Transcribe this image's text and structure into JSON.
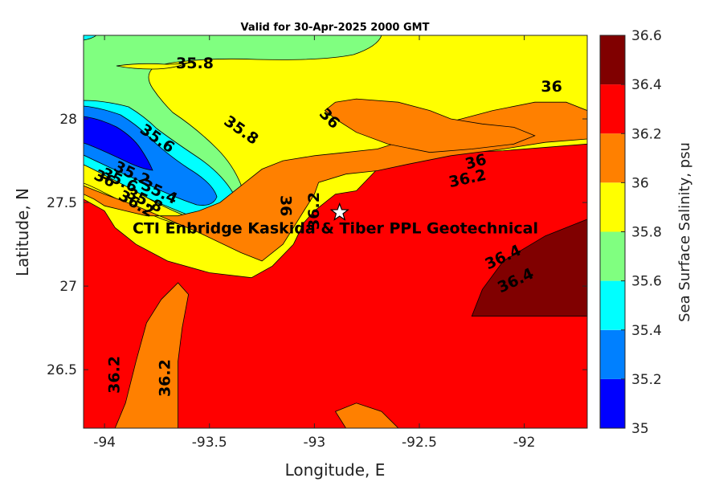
{
  "chart_data": {
    "type": "contourf",
    "title": "Valid for 30-Apr-2025 2000 GMT",
    "xlabel": "Longitude, E",
    "ylabel": "Latitude, N",
    "xlim": [
      -94.1,
      -91.7
    ],
    "ylim": [
      26.15,
      28.5
    ],
    "xticks": [
      {
        "value": -94,
        "label": "-94"
      },
      {
        "value": -93.5,
        "label": "-93.5"
      },
      {
        "value": -93,
        "label": "-93"
      },
      {
        "value": -92.5,
        "label": "-92.5"
      },
      {
        "value": -92,
        "label": "-92"
      }
    ],
    "yticks": [
      {
        "value": 26.5,
        "label": "26.5"
      },
      {
        "value": 27,
        "label": "27"
      },
      {
        "value": 27.5,
        "label": "27.5"
      },
      {
        "value": 28,
        "label": "28"
      }
    ],
    "colorbar": {
      "label": "Sea Surface Salinity, psu",
      "min": 35,
      "max": 36.6,
      "levels": [
        {
          "from": 35.0,
          "to": 35.2,
          "color": "#0000ff"
        },
        {
          "from": 35.2,
          "to": 35.4,
          "color": "#0080ff"
        },
        {
          "from": 35.4,
          "to": 35.6,
          "color": "#00ffff"
        },
        {
          "from": 35.6,
          "to": 35.8,
          "color": "#80ff80"
        },
        {
          "from": 35.8,
          "to": 36.0,
          "color": "#ffff00"
        },
        {
          "from": 36.0,
          "to": 36.2,
          "color": "#ff8000"
        },
        {
          "from": 36.2,
          "to": 36.4,
          "color": "#ff0000"
        },
        {
          "from": 36.4,
          "to": 36.6,
          "color": "#800000"
        }
      ],
      "ticks": [
        {
          "value": 35,
          "label": "35"
        },
        {
          "value": 35.2,
          "label": "35.2"
        },
        {
          "value": 35.4,
          "label": "35.4"
        },
        {
          "value": 35.6,
          "label": "35.6"
        },
        {
          "value": 35.8,
          "label": "35.8"
        },
        {
          "value": 36,
          "label": "36"
        },
        {
          "value": 36.2,
          "label": "36.2"
        },
        {
          "value": 36.4,
          "label": "36.4"
        },
        {
          "value": 36.6,
          "label": "36.6"
        }
      ]
    },
    "contour_labels": [
      {
        "text": "35.8",
        "lon": -93.57,
        "lat": 28.33,
        "angle": 0
      },
      {
        "text": "36",
        "lon": -91.87,
        "lat": 28.19,
        "angle": 0
      },
      {
        "text": "35.8",
        "lon": -93.35,
        "lat": 27.93,
        "angle": 35
      },
      {
        "text": "36",
        "lon": -92.93,
        "lat": 28.0,
        "angle": 45
      },
      {
        "text": "35.6",
        "lon": -93.75,
        "lat": 27.88,
        "angle": 35
      },
      {
        "text": "36",
        "lon": -92.23,
        "lat": 27.74,
        "angle": -15
      },
      {
        "text": "36.2",
        "lon": -92.27,
        "lat": 27.64,
        "angle": -12
      },
      {
        "text": "35.2",
        "lon": -93.87,
        "lat": 27.67,
        "angle": 25
      },
      {
        "text": "35.4",
        "lon": -93.74,
        "lat": 27.56,
        "angle": 25
      },
      {
        "text": "35.6",
        "lon": -93.93,
        "lat": 27.63,
        "angle": 25
      },
      {
        "text": "35.8",
        "lon": -93.81,
        "lat": 27.51,
        "angle": 25
      },
      {
        "text": "36",
        "lon": -94.0,
        "lat": 27.64,
        "angle": 25
      },
      {
        "text": "36.2",
        "lon": -93.85,
        "lat": 27.49,
        "angle": 30
      },
      {
        "text": "36",
        "lon": -93.14,
        "lat": 27.48,
        "angle": 90
      },
      {
        "text": "36.2",
        "lon": -93.0,
        "lat": 27.45,
        "angle": -90
      },
      {
        "text": "36.4",
        "lon": -92.1,
        "lat": 27.17,
        "angle": -25
      },
      {
        "text": "36.4",
        "lon": -92.04,
        "lat": 27.03,
        "angle": -25
      },
      {
        "text": "36.2",
        "lon": -93.95,
        "lat": 26.47,
        "angle": -90
      },
      {
        "text": "36.2",
        "lon": -93.71,
        "lat": 26.45,
        "angle": -90
      }
    ],
    "annotation": {
      "text": "CTI Enbridge  Kaskida & Tiber PPL Geotechnical",
      "lon": -92.9,
      "lat": 27.35
    },
    "marker": {
      "type": "star",
      "lon": -92.88,
      "lat": 27.44
    },
    "regions": [
      {
        "level": 36.2,
        "poly": [
          [
            -94.1,
            26.15
          ],
          [
            -91.7,
            26.15
          ],
          [
            -91.7,
            27.85
          ],
          [
            -92.1,
            27.81
          ],
          [
            -92.3,
            27.8
          ],
          [
            -92.5,
            27.77
          ],
          [
            -92.7,
            27.7
          ],
          [
            -92.8,
            27.57
          ],
          [
            -92.9,
            27.55
          ],
          [
            -93.0,
            27.45
          ],
          [
            -93.05,
            27.38
          ],
          [
            -93.1,
            27.25
          ],
          [
            -93.2,
            27.12
          ],
          [
            -93.3,
            27.05
          ],
          [
            -93.5,
            27.08
          ],
          [
            -93.7,
            27.15
          ],
          [
            -93.85,
            27.25
          ],
          [
            -93.95,
            27.35
          ],
          [
            -94.0,
            27.45
          ],
          [
            -94.1,
            27.52
          ]
        ]
      },
      {
        "level": 36.4,
        "poly": [
          [
            -92.25,
            26.82
          ],
          [
            -91.7,
            26.82
          ],
          [
            -91.7,
            27.4
          ],
          [
            -91.9,
            27.3
          ],
          [
            -92.1,
            27.15
          ],
          [
            -92.2,
            26.98
          ]
        ]
      },
      {
        "level": 36.0,
        "poly": [
          [
            -94.1,
            27.6
          ],
          [
            -94.0,
            27.55
          ],
          [
            -93.85,
            27.48
          ],
          [
            -93.7,
            27.4
          ],
          [
            -93.55,
            27.32
          ],
          [
            -93.35,
            27.2
          ],
          [
            -93.25,
            27.15
          ],
          [
            -93.15,
            27.25
          ],
          [
            -93.1,
            27.35
          ],
          [
            -93.05,
            27.45
          ],
          [
            -93.0,
            27.55
          ],
          [
            -92.98,
            27.62
          ],
          [
            -92.85,
            27.67
          ],
          [
            -92.7,
            27.69
          ],
          [
            -92.55,
            27.73
          ],
          [
            -92.35,
            27.78
          ],
          [
            -92.1,
            27.82
          ],
          [
            -91.9,
            27.86
          ],
          [
            -91.7,
            27.88
          ],
          [
            -91.7,
            28.05
          ],
          [
            -91.8,
            28.1
          ],
          [
            -91.95,
            28.1
          ],
          [
            -92.15,
            28.05
          ],
          [
            -92.3,
            28.0
          ],
          [
            -92.45,
            27.95
          ],
          [
            -92.6,
            27.86
          ],
          [
            -92.7,
            27.82
          ],
          [
            -92.85,
            27.8
          ],
          [
            -93.0,
            27.78
          ],
          [
            -93.15,
            27.75
          ],
          [
            -93.25,
            27.7
          ],
          [
            -93.35,
            27.6
          ],
          [
            -93.45,
            27.5
          ],
          [
            -93.55,
            27.45
          ],
          [
            -93.65,
            27.42
          ],
          [
            -93.8,
            27.42
          ],
          [
            -93.9,
            27.45
          ],
          [
            -94.0,
            27.48
          ],
          [
            -94.05,
            27.52
          ],
          [
            -94.1,
            27.55
          ]
        ]
      },
      {
        "level": 36.0,
        "poly": [
          [
            -92.95,
            28.05
          ],
          [
            -92.9,
            28.1
          ],
          [
            -92.8,
            28.12
          ],
          [
            -92.6,
            28.1
          ],
          [
            -92.45,
            28.05
          ],
          [
            -92.35,
            28.0
          ],
          [
            -92.2,
            27.97
          ],
          [
            -92.05,
            27.95
          ],
          [
            -91.95,
            27.9
          ],
          [
            -92.05,
            27.85
          ],
          [
            -92.25,
            27.82
          ],
          [
            -92.45,
            27.8
          ],
          [
            -92.65,
            27.85
          ],
          [
            -92.8,
            27.92
          ],
          [
            -92.9,
            28.0
          ]
        ]
      },
      {
        "level": 36.0,
        "poly": [
          [
            -93.95,
            26.15
          ],
          [
            -93.9,
            26.3
          ],
          [
            -93.85,
            26.55
          ],
          [
            -93.8,
            26.78
          ],
          [
            -93.73,
            26.92
          ],
          [
            -93.65,
            27.02
          ],
          [
            -93.6,
            26.95
          ],
          [
            -93.63,
            26.75
          ],
          [
            -93.65,
            26.55
          ],
          [
            -93.65,
            26.15
          ]
        ]
      },
      {
        "level": 36.0,
        "poly": [
          [
            -92.85,
            26.15
          ],
          [
            -92.9,
            26.25
          ],
          [
            -92.8,
            26.3
          ],
          [
            -92.68,
            26.25
          ],
          [
            -92.6,
            26.15
          ]
        ]
      }
    ]
  }
}
